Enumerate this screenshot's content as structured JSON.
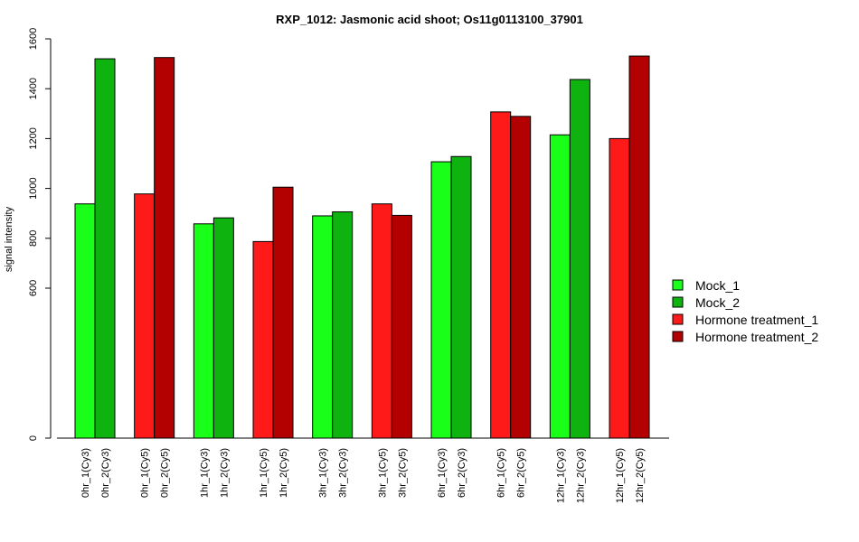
{
  "chart_data": {
    "type": "bar",
    "title": "RXP_1012: Jasmonic acid shoot; Os11g0113100_37901",
    "xlabel": "",
    "ylabel": "signal intensity",
    "y_ticks": [
      "0",
      "600",
      "800",
      "1000",
      "1200",
      "1400",
      "1600"
    ],
    "y_tick_values": [
      0,
      600,
      800,
      1000,
      1200,
      1400,
      1600
    ],
    "categories": [
      "0hr_1(Cy3)",
      "0hr_2(Cy3)",
      "0hr_1(Cy5)",
      "0hr_2(Cy5)",
      "1hr_1(Cy3)",
      "1hr_2(Cy3)",
      "1hr_1(Cy5)",
      "1hr_2(Cy5)",
      "3hr_1(Cy3)",
      "3hr_2(Cy3)",
      "3hr_1(Cy5)",
      "3hr_2(Cy5)",
      "6hr_1(Cy3)",
      "6hr_2(Cy3)",
      "6hr_1(Cy5)",
      "6hr_2(Cy5)",
      "12hr_1(Cy3)",
      "12hr_2(Cy3)",
      "12hr_1(Cy5)",
      "12hr_2(Cy5)"
    ],
    "values": [
      938,
      1520,
      978,
      1525,
      858,
      882,
      787,
      1005,
      890,
      906,
      938,
      892,
      1107,
      1128,
      1307,
      1289,
      1215,
      1437,
      1200,
      1531
    ],
    "series_index": [
      0,
      1,
      2,
      3,
      0,
      1,
      2,
      3,
      0,
      1,
      2,
      3,
      0,
      1,
      2,
      3,
      0,
      1,
      2,
      3
    ],
    "series": [
      {
        "name": "Mock_1",
        "color": "#1aff1a"
      },
      {
        "name": "Mock_2",
        "color": "#0fb30f"
      },
      {
        "name": "Hormone treatment_1",
        "color": "#ff1a1a"
      },
      {
        "name": "Hormone treatment_2",
        "color": "#b30000"
      }
    ],
    "y_axis_breakpoints": {
      "data": [
        0,
        600,
        1600
      ]
    },
    "legend_position": "right",
    "grid": false
  }
}
